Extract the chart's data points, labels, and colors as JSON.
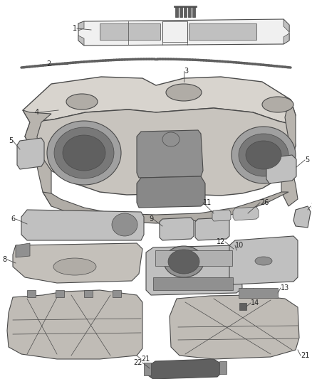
{
  "bg": "#ffffff",
  "lc": "#4a4a4a",
  "lw_thin": 0.5,
  "lw_med": 0.8,
  "lw_thick": 1.0,
  "label_fs": 7,
  "label_color": "#222222",
  "fig_w": 4.38,
  "fig_h": 5.33,
  "dpi": 100
}
